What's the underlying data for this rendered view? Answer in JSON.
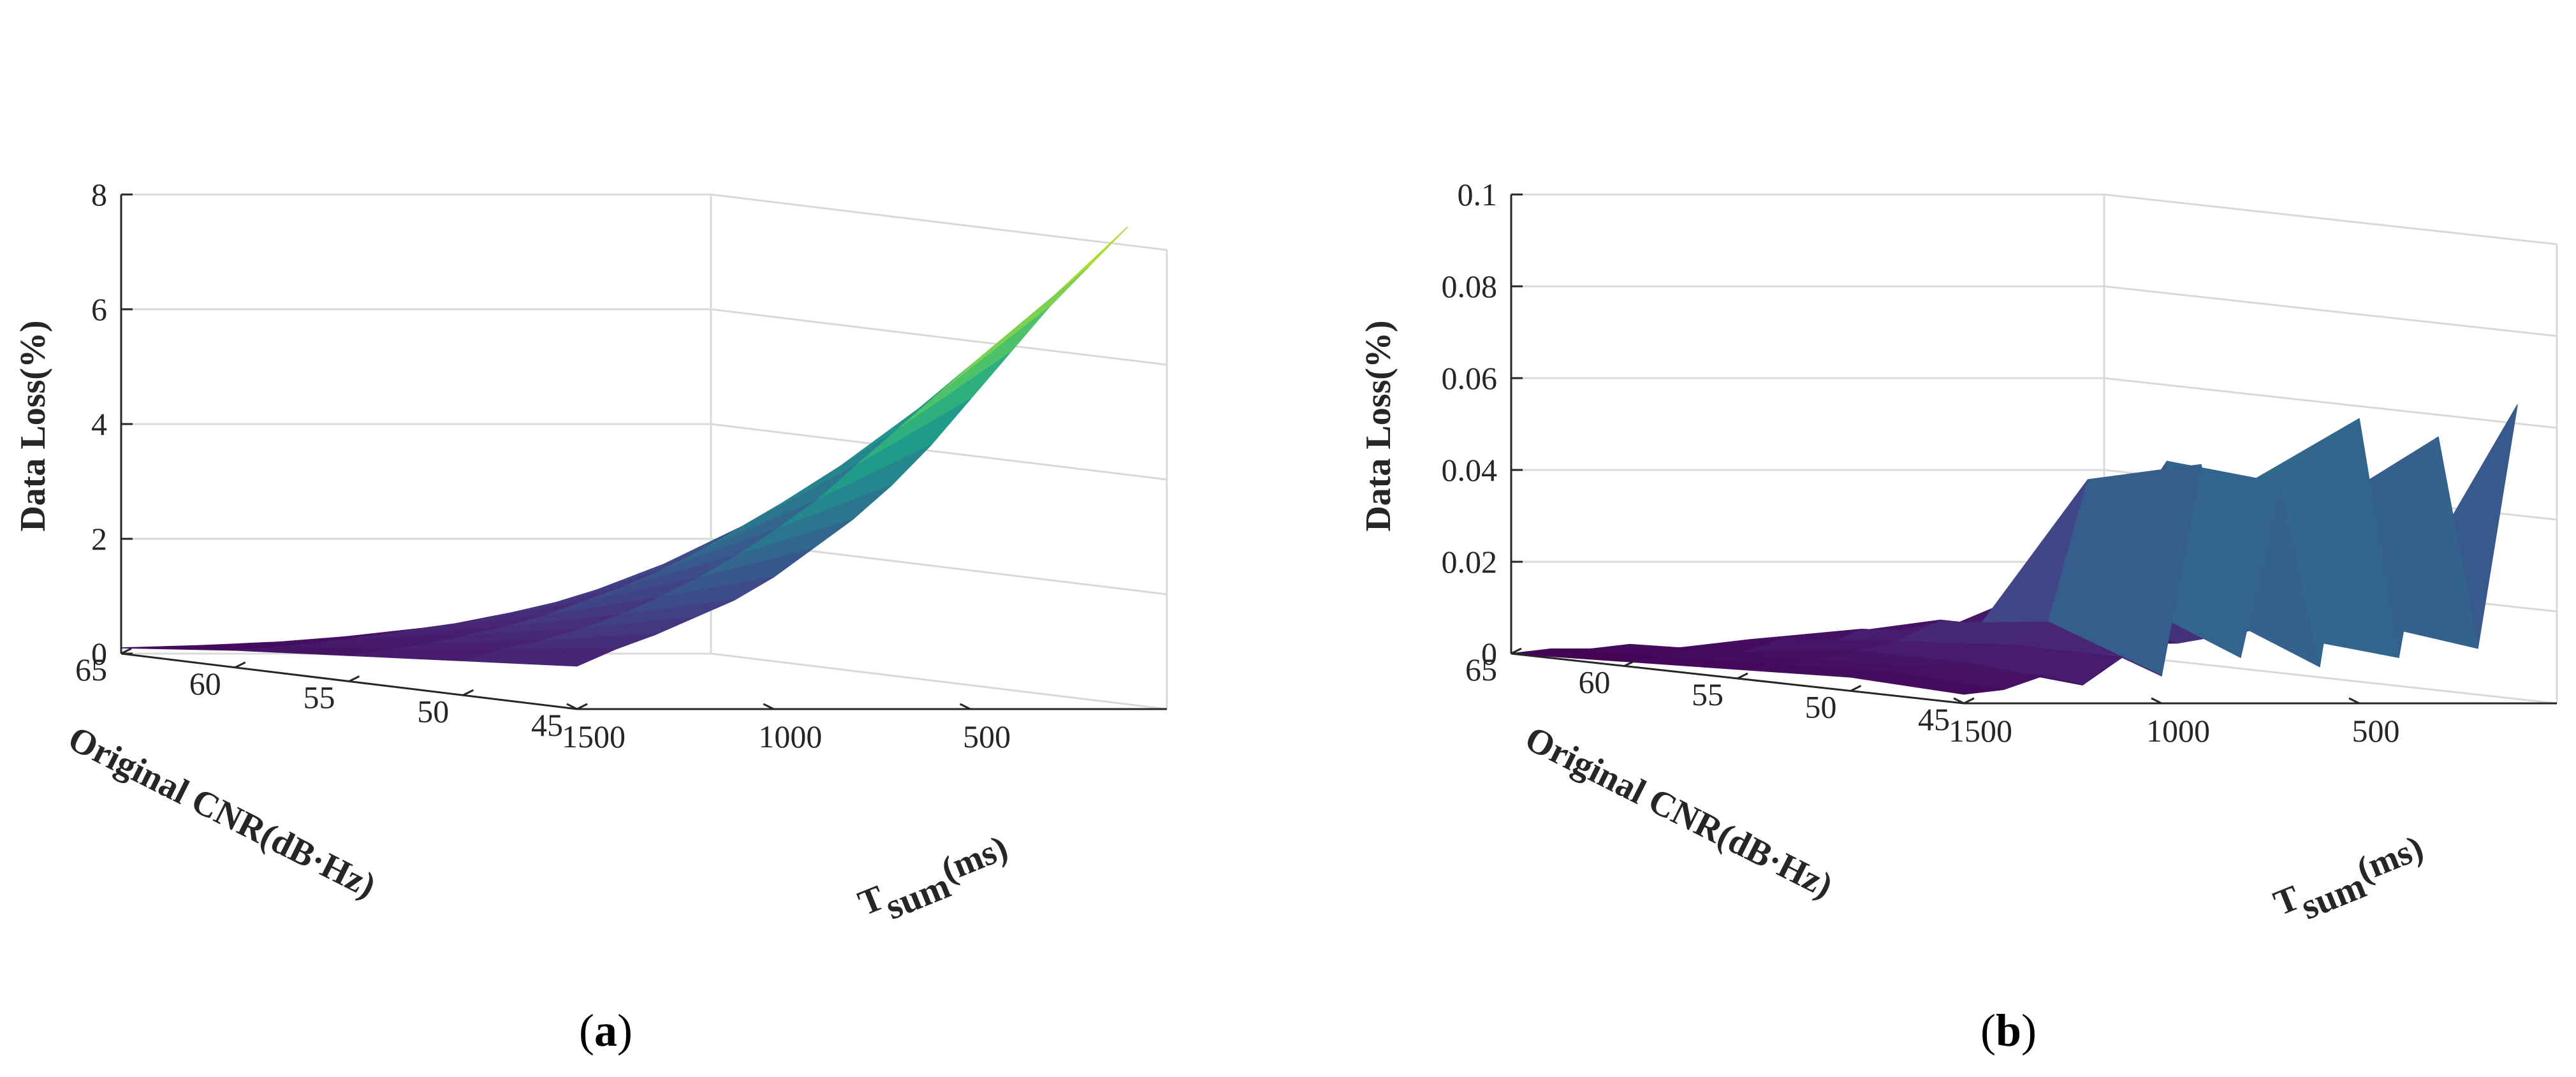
{
  "chart_data": [
    {
      "type": "surface",
      "panel_label": "a",
      "zlabel": "Data Loss(%)",
      "ylabel": "Original CNR(dB·Hz)",
      "xlabel_main": "T",
      "xlabel_sub": "sum",
      "xlabel_unit": "(ms)",
      "x_ticks": [
        "500",
        "1000",
        "1500"
      ],
      "y_ticks": [
        "45",
        "50",
        "55",
        "60",
        "65"
      ],
      "z_ticks": [
        "0",
        "2",
        "4",
        "6",
        "8"
      ],
      "xlim": [
        0,
        1500
      ],
      "ylim": [
        45,
        65
      ],
      "zlim": [
        0,
        8
      ],
      "colormap": "viridis",
      "T_values": [
        100,
        200,
        300,
        400,
        500,
        600,
        700,
        800,
        900,
        1000,
        1100,
        1200,
        1300,
        1400,
        1500
      ],
      "CNR_values": [
        45,
        50,
        55,
        60,
        65
      ],
      "data_loss": [
        [
          8.4,
          7.7,
          7.0,
          6.2,
          5.4,
          4.6,
          3.9,
          3.3,
          2.8,
          2.3,
          1.9,
          1.6,
          1.3,
          1.05,
          0.75
        ],
        [
          6.3,
          5.8,
          5.2,
          4.6,
          4.0,
          3.4,
          2.9,
          2.45,
          2.05,
          1.7,
          1.4,
          1.15,
          0.95,
          0.8,
          0.6
        ],
        [
          4.3,
          3.9,
          3.5,
          3.1,
          2.7,
          2.3,
          1.95,
          1.65,
          1.4,
          1.15,
          0.95,
          0.8,
          0.65,
          0.55,
          0.45
        ],
        [
          2.4,
          2.2,
          1.95,
          1.7,
          1.5,
          1.3,
          1.1,
          0.95,
          0.8,
          0.7,
          0.6,
          0.5,
          0.42,
          0.35,
          0.3
        ],
        [
          0.8,
          0.72,
          0.65,
          0.58,
          0.5,
          0.44,
          0.38,
          0.32,
          0.28,
          0.24,
          0.2,
          0.17,
          0.14,
          0.12,
          0.1
        ]
      ]
    },
    {
      "type": "surface",
      "panel_label": "b",
      "zlabel": "Data Loss(%)",
      "ylabel": "Original CNR(dB·Hz)",
      "xlabel_main": "T",
      "xlabel_sub": "sum",
      "xlabel_unit": "(ms)",
      "x_ticks": [
        "500",
        "1000",
        "1500"
      ],
      "y_ticks": [
        "45",
        "50",
        "55",
        "60",
        "65"
      ],
      "z_ticks": [
        "0",
        "0.02",
        "0.04",
        "0.06",
        "0.08",
        "0.1"
      ],
      "xlim": [
        0,
        1500
      ],
      "ylim": [
        45,
        65
      ],
      "zlim": [
        0,
        0.1
      ],
      "colormap": "viridis",
      "T_values": [
        100,
        200,
        300,
        400,
        500,
        600,
        700,
        800,
        900,
        1000,
        1100,
        1200,
        1300,
        1400,
        1500
      ],
      "CNR_values": [
        45,
        50,
        55,
        60,
        65
      ],
      "data_loss": [
        [
          0.065,
          0.012,
          0.058,
          0.01,
          0.062,
          0.008,
          0.048,
          0.01,
          0.052,
          0.006,
          0.01,
          0.004,
          0.006,
          0.003,
          0.002
        ],
        [
          0.02,
          0.015,
          0.04,
          0.012,
          0.045,
          0.018,
          0.05,
          0.02,
          0.046,
          0.015,
          0.01,
          0.006,
          0.005,
          0.004,
          0.003
        ],
        [
          0.012,
          0.03,
          0.01,
          0.025,
          0.012,
          0.022,
          0.01,
          0.015,
          0.01,
          0.012,
          0.008,
          0.006,
          0.004,
          0.003,
          0.002
        ],
        [
          0.005,
          0.008,
          0.02,
          0.006,
          0.015,
          0.005,
          0.01,
          0.004,
          0.008,
          0.004,
          0.006,
          0.003,
          0.004,
          0.002,
          0.001
        ],
        [
          0.002,
          0.004,
          0.003,
          0.005,
          0.002,
          0.003,
          0.004,
          0.002,
          0.003,
          0.002,
          0.001,
          0.002,
          0.001,
          0.001,
          0.0
        ]
      ]
    }
  ]
}
